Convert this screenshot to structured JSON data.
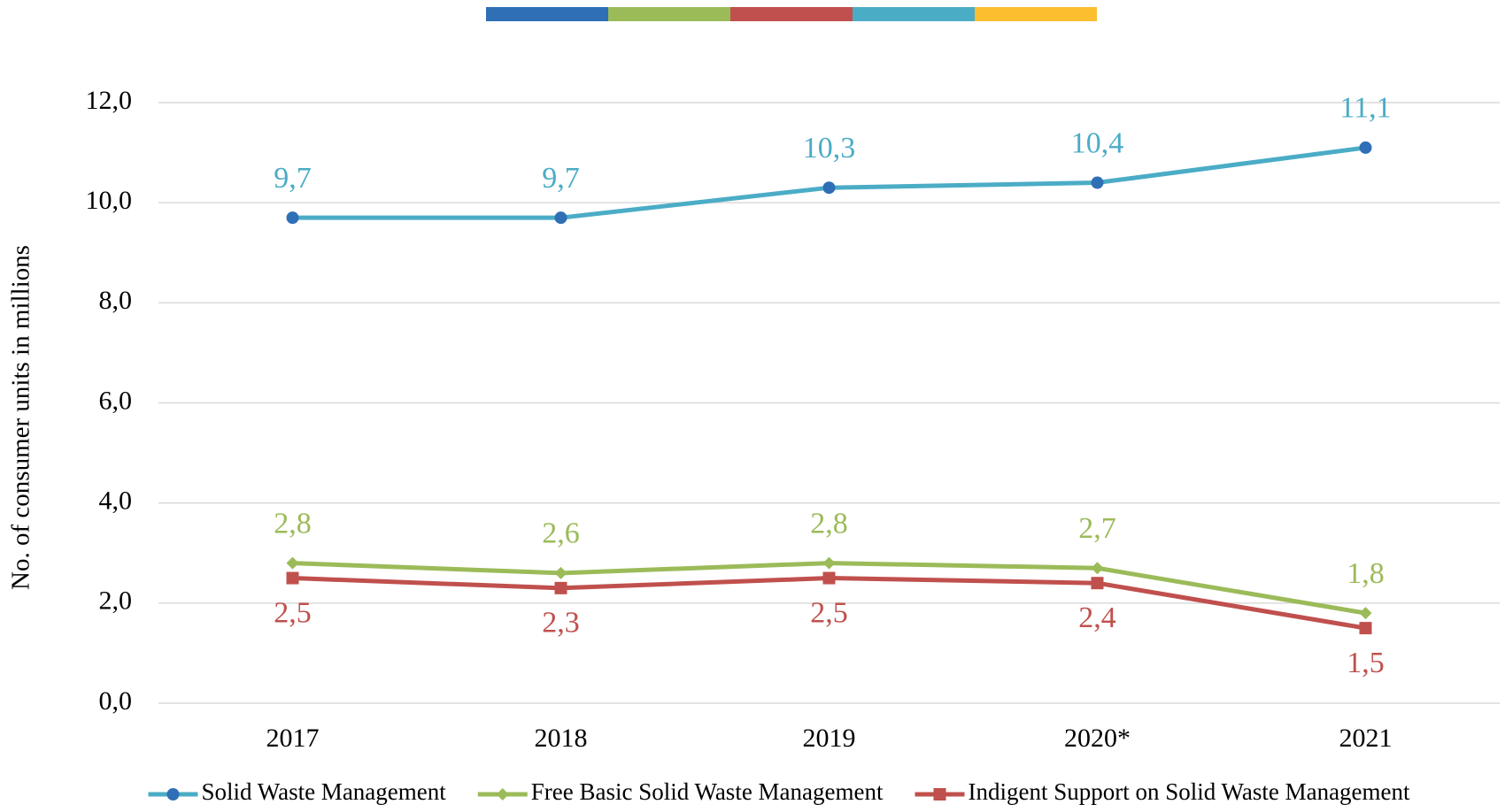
{
  "chart_data": {
    "type": "line",
    "y_axis_label": "No. of consumer units in millions",
    "categories": [
      "2017",
      "2018",
      "2019",
      "2020*",
      "2021"
    ],
    "series": [
      {
        "name": "Solid Waste Management",
        "color": "#4bacc6",
        "marker": "circle",
        "marker_color": "#2e6fb5",
        "label_position": "above",
        "values": [
          9.7,
          9.7,
          10.3,
          10.4,
          11.1
        ],
        "value_labels": [
          "9,7",
          "9,7",
          "10,3",
          "10,4",
          "11,1"
        ]
      },
      {
        "name": "Free Basic Solid Waste Management",
        "color": "#9bbb59",
        "marker": "diamond",
        "marker_color": "#9bbb59",
        "label_position": "above",
        "values": [
          2.8,
          2.6,
          2.8,
          2.7,
          1.8
        ],
        "value_labels": [
          "2,8",
          "2,6",
          "2,8",
          "2,7",
          "1,8"
        ]
      },
      {
        "name": "Indigent Support on Solid Waste Management",
        "color": "#c0504d",
        "marker": "square",
        "marker_color": "#c0504d",
        "label_position": "below",
        "values": [
          2.5,
          2.3,
          2.5,
          2.4,
          1.5
        ],
        "value_labels": [
          "2,5",
          "2,3",
          "2,5",
          "2,4",
          "1,5"
        ]
      }
    ],
    "ylim": [
      0,
      12
    ],
    "yticks": [
      {
        "value": 0,
        "label": "0,0"
      },
      {
        "value": 2,
        "label": "2,0"
      },
      {
        "value": 4,
        "label": "4,0"
      },
      {
        "value": 6,
        "label": "6,0"
      },
      {
        "value": 8,
        "label": "8,0"
      },
      {
        "value": 10,
        "label": "10,0"
      },
      {
        "value": 12,
        "label": "12,0"
      }
    ],
    "grid": true,
    "legend": "bottom"
  }
}
